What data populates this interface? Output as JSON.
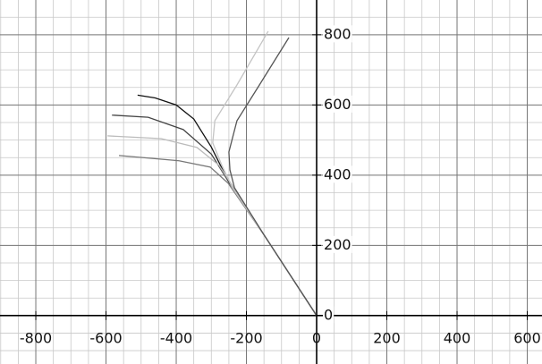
{
  "chart_data": {
    "type": "line",
    "xlim": [
      -902,
      642
    ],
    "ylim": [
      -138,
      899
    ],
    "xticks": [
      -800,
      -600,
      -400,
      -200,
      0,
      200,
      400,
      600
    ],
    "yticks": [
      0,
      200,
      400,
      600,
      800
    ],
    "grid": true,
    "series": [
      {
        "color": "#111111",
        "x": [
          0,
          -150,
          -250,
          -300,
          -350,
          -400,
          -460,
          -510
        ],
        "values": [
          0,
          230,
          380,
          480,
          560,
          600,
          620,
          628
        ]
      },
      {
        "color": "#444444",
        "x": [
          0,
          -150,
          -250,
          -300,
          -380,
          -480,
          -583
        ],
        "values": [
          0,
          230,
          380,
          460,
          530,
          565,
          571
        ]
      },
      {
        "color": "#bbbbbb",
        "x": [
          0,
          -150,
          -240,
          -278,
          -341,
          -443,
          -596
        ],
        "values": [
          0,
          230,
          370,
          428,
          479,
          504,
          512
        ]
      },
      {
        "color": "#777777",
        "x": [
          0,
          -150,
          -252,
          -303,
          -392,
          -563
        ],
        "values": [
          0,
          230,
          377,
          423,
          441,
          456
        ]
      },
      {
        "color": "#c4c4c4",
        "x": [
          0,
          -150,
          -240,
          -270,
          -296,
          -290,
          -227,
          -138
        ],
        "values": [
          0,
          230,
          364,
          428,
          492,
          555,
          657,
          810
        ]
      },
      {
        "color": "#555555",
        "x": [
          0,
          -150,
          -234,
          -247,
          -250,
          -227,
          -163,
          -79
        ],
        "values": [
          0,
          230,
          364,
          415,
          466,
          555,
          657,
          792
        ]
      }
    ]
  }
}
